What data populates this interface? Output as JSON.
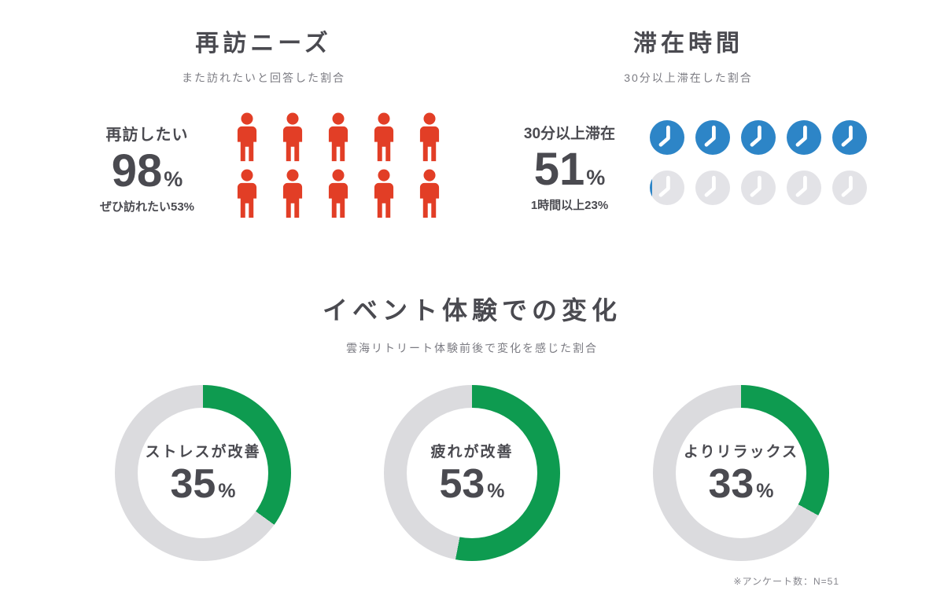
{
  "chart_data": [
    {
      "type": "pictograph",
      "title": "再訪ニーズ",
      "subtitle": "また訪れたいと回答した割合",
      "stat_label": "再訪したい",
      "value": 98,
      "unit": "%",
      "sub_stat": "ぜひ訪れたい53%",
      "icon": "person",
      "icon_total": 10,
      "icon_filled": 10,
      "icon_color": "#E23E26"
    },
    {
      "type": "pictograph",
      "title": "滞在時間",
      "subtitle": "30分以上滞在した割合",
      "stat_label": "30分以上滞在",
      "value": 51,
      "unit": "%",
      "sub_stat": "1時間以上23%",
      "icon": "clock",
      "icon_total": 10,
      "icon_filled": 5.1,
      "icon_color": "#2D85C7",
      "icon_empty_color": "#E3E3E7"
    },
    {
      "type": "donut",
      "title": "イベント体験での変化",
      "subtitle": "雲海リトリート体験前後で変化を感じた割合",
      "unit": "%",
      "series": [
        {
          "label": "ストレスが改善",
          "value": 35
        },
        {
          "label": "疲れが改善",
          "value": 53
        },
        {
          "label": "よりリラックス",
          "value": 33
        }
      ],
      "color": "#0E9B50",
      "track_color": "#DBDBDE",
      "note": "※アンケート数：N=51"
    }
  ]
}
